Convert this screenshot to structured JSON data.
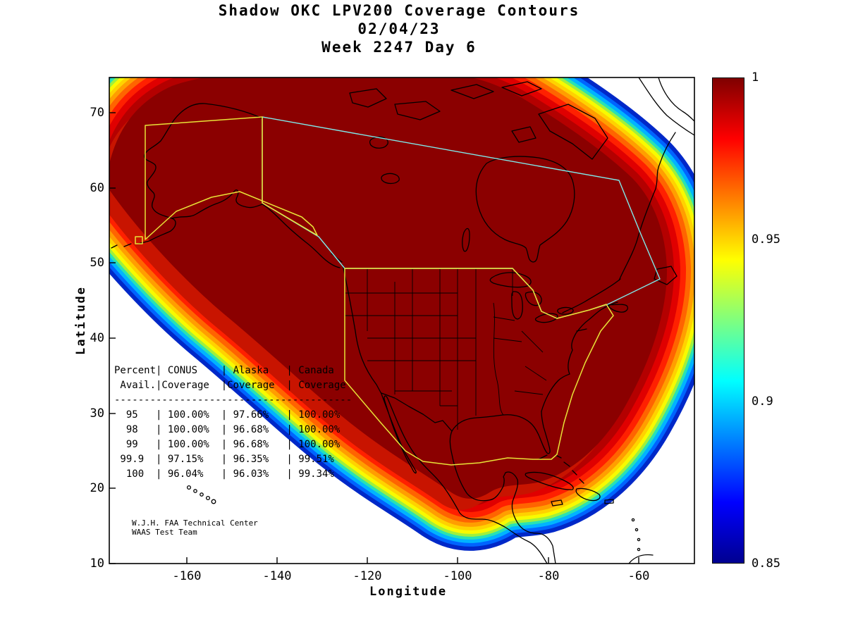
{
  "title": {
    "line1": "Shadow OKC LPV200 Coverage Contours",
    "line2": "02/04/23",
    "line3": "Week 2247 Day 6"
  },
  "axes": {
    "x_label": "Longitude",
    "y_label": "Latitude",
    "x_ticks": [
      "-160",
      "-140",
      "-120",
      "-100",
      "-80",
      "-60"
    ],
    "y_ticks": [
      "70",
      "60",
      "50",
      "40",
      "30",
      "20",
      "10"
    ]
  },
  "colorbar": {
    "stops": [
      "#7f0000",
      "#ff0000",
      "#ff7f00",
      "#ffff00",
      "#7fff7f",
      "#00ffff",
      "#007fff",
      "#0000ff",
      "#000090"
    ],
    "ticks": [
      {
        "label": "1",
        "pos": 0
      },
      {
        "label": "0.95",
        "pos": 0.3333
      },
      {
        "label": "0.9",
        "pos": 0.6667
      },
      {
        "label": "0.85",
        "pos": 1
      }
    ]
  },
  "plot_table": {
    "header1": "Percent| CONUS    | Alaska   | Canada",
    "header2": " Avail.|Coverage  |Coverage  | Coverage",
    "rows": [
      [
        "95",
        "100.00%",
        "97.66%",
        "100.00%"
      ],
      [
        "98",
        "100.00%",
        "96.68%",
        "100.00%"
      ],
      [
        "99",
        "100.00%",
        "96.68%",
        "100.00%"
      ],
      [
        "99.9",
        "97.15%",
        "96.35%",
        "99.51%"
      ],
      [
        "100",
        "96.04%",
        "96.03%",
        "99.34%"
      ]
    ]
  },
  "attribution": {
    "line1": "W.J.H. FAA Technical Center",
    "line2": "WAAS Test Team"
  },
  "contours": {
    "interior_color": "#8b0000",
    "under_red_color": "#c81400",
    "bands": [
      {
        "color": "#b40000",
        "d": 10
      },
      {
        "color": "#e00000",
        "d": 19
      },
      {
        "color": "#ff2000",
        "d": 27
      },
      {
        "color": "#ff6400",
        "d": 34
      },
      {
        "color": "#ff9e00",
        "d": 40
      },
      {
        "color": "#ffd200",
        "d": 45
      },
      {
        "color": "#f8fa00",
        "d": 50
      },
      {
        "color": "#a0f03c",
        "d": 54
      },
      {
        "color": "#28e2b4",
        "d": 58
      },
      {
        "color": "#00b4ff",
        "d": 63
      },
      {
        "color": "#0064ff",
        "d": 68
      },
      {
        "color": "#0028c8",
        "d": 74
      }
    ]
  },
  "chart_data": {
    "type": "heatmap",
    "title": "Shadow OKC LPV200 Coverage Contours",
    "subtitle": [
      "02/04/23",
      "Week 2247 Day 6"
    ],
    "xlabel": "Longitude",
    "ylabel": "Latitude",
    "xlim": [
      -177,
      -48
    ],
    "ylim": [
      10,
      75
    ],
    "x_ticks": [
      -160,
      -140,
      -120,
      -100,
      -80,
      -60
    ],
    "y_ticks": [
      10,
      20,
      30,
      40,
      50,
      60,
      70
    ],
    "grid": false,
    "colorbar": {
      "range": [
        0.85,
        1
      ],
      "ticks": [
        1,
        0.95,
        0.9,
        0.85
      ],
      "colormap": "jet",
      "position": "right"
    },
    "description": "Filled contour map of WAAS LPV200 coverage availability over North America. Interior dark-red region = availability 1.0 covering Alaska, Canada and CONUS; concentric jet-colormap fringe bands decrease to 0.85 at the outer boundary. Yellow outlines mark the CONUS and Alaska service volumes; cyan outline marks the Canada service volume.",
    "availability_table": {
      "columns": [
        "Percent Avail.",
        "CONUS Coverage",
        "Alaska Coverage",
        "Canada Coverage"
      ],
      "rows": [
        [
          95,
          "100.00%",
          "97.66%",
          "100.00%"
        ],
        [
          98,
          "100.00%",
          "96.68%",
          "100.00%"
        ],
        [
          99,
          "100.00%",
          "96.68%",
          "100.00%"
        ],
        [
          99.9,
          "97.15%",
          "96.35%",
          "99.51%"
        ],
        [
          100,
          "96.04%",
          "96.03%",
          "99.34%"
        ]
      ]
    }
  }
}
